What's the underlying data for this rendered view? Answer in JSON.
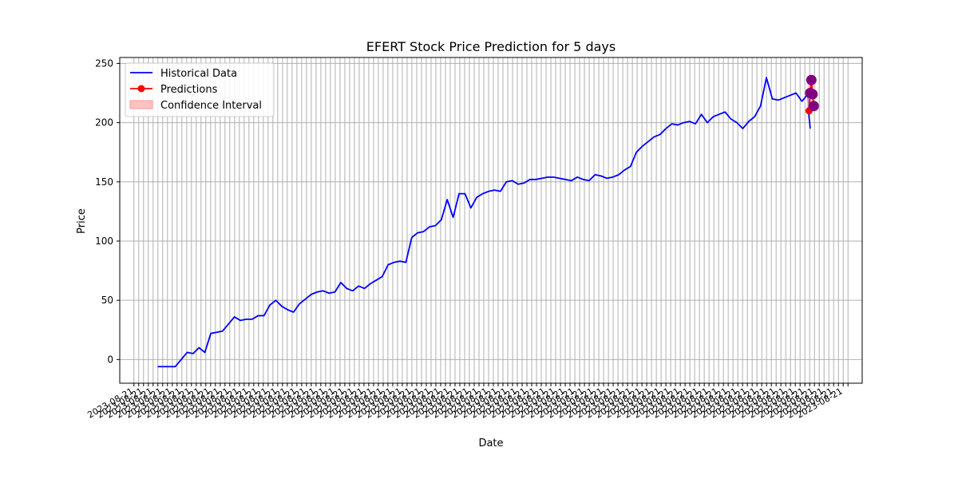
{
  "chart_data": {
    "type": "line",
    "title": "EFERT Stock Price Prediction for 5 days",
    "xlabel": "Date",
    "ylabel": "Price",
    "ylim": [
      -20,
      255
    ],
    "yticks": [
      0,
      50,
      100,
      150,
      200,
      250
    ],
    "grid": true,
    "legend_position": "top-left",
    "legend": [
      "Historical Data",
      "Predictions",
      "Confidence Interval"
    ],
    "x_tick_count": 150,
    "x_tick_label_sample": "2023-08-21",
    "colors": {
      "historical": "#0000ff",
      "predictions": "#ff0000",
      "interval_fill": "#ffc0c0",
      "interval_marker": "#800080",
      "grid": "#b0b0b0"
    },
    "series": [
      {
        "name": "Historical Data",
        "x": [
          0.0,
          2.5,
          5.0,
          7.5,
          10.0,
          12.5,
          15.0,
          17.5,
          20.0,
          22.5,
          25.0,
          27.5,
          30.0,
          32.5,
          35.0,
          37.5,
          40.0,
          42.5,
          45.0,
          47.5,
          50.0,
          52.5,
          55.0,
          57.5,
          60.0,
          62.5,
          65.0,
          67.5,
          70.0,
          72.5,
          75.0,
          77.5,
          80.0,
          82.5,
          85.0,
          87.5,
          90.0,
          92.5,
          95.0,
          97.5,
          100.0,
          102.5,
          105.0,
          107.5,
          110.0,
          112.5,
          115.0,
          117.5,
          120.0,
          122.5,
          125.0,
          127.5,
          130.0,
          132.5,
          135.0,
          137.5,
          140.0,
          142.5,
          145.0
        ],
        "values": [
          -6,
          -6,
          -6,
          -6,
          0,
          6,
          5,
          10,
          6,
          22,
          23,
          24,
          30,
          36,
          33,
          34,
          34,
          37,
          37,
          46,
          50,
          45,
          42,
          40,
          47,
          51,
          55,
          57,
          58,
          56,
          57,
          65,
          60,
          58,
          62,
          60,
          64,
          67,
          70,
          80,
          82,
          83,
          82,
          103,
          107,
          108,
          112,
          113,
          118,
          135,
          120,
          140,
          140,
          128,
          137,
          140,
          142,
          143,
          142
        ],
        "values_note": "",
        "cont_x": [
          147.5,
          150.0,
          152.5,
          155.0,
          157.5,
          160.0,
          162.5,
          165.0,
          167.5,
          170.0,
          172.5,
          175.0,
          177.5,
          180.0,
          182.5,
          185.0,
          187.5,
          190.0,
          192.5,
          195.0,
          197.5,
          200.0,
          202.5,
          205.0,
          207.5,
          210.0,
          212.5,
          215.0,
          217.5,
          220.0,
          222.5,
          225.0,
          227.5,
          230.0,
          232.5,
          235.0,
          237.5,
          240.0,
          242.5,
          245.0,
          247.5,
          250.0,
          252.5,
          255.0,
          257.5,
          260.0,
          262.5,
          265.0,
          267.5,
          270.0,
          272.5,
          275.0
        ],
        "cont_values": [
          150,
          151,
          148,
          149,
          152,
          152,
          153,
          154,
          154,
          153,
          152,
          151,
          154,
          152,
          151,
          156,
          155,
          153,
          154,
          156,
          160,
          163,
          175,
          180,
          184,
          188,
          190,
          195,
          199,
          198,
          200,
          201,
          199,
          207,
          200,
          205,
          207,
          209,
          203,
          200,
          195,
          201,
          205,
          214,
          238,
          220,
          219,
          221,
          223,
          225,
          218,
          224
        ]
      },
      {
        "name": "Predictions",
        "x": [
          275.5,
          276.0,
          276.5,
          277.0,
          277.5
        ],
        "values": [
          210,
          225,
          236,
          224,
          214
        ]
      }
    ]
  }
}
